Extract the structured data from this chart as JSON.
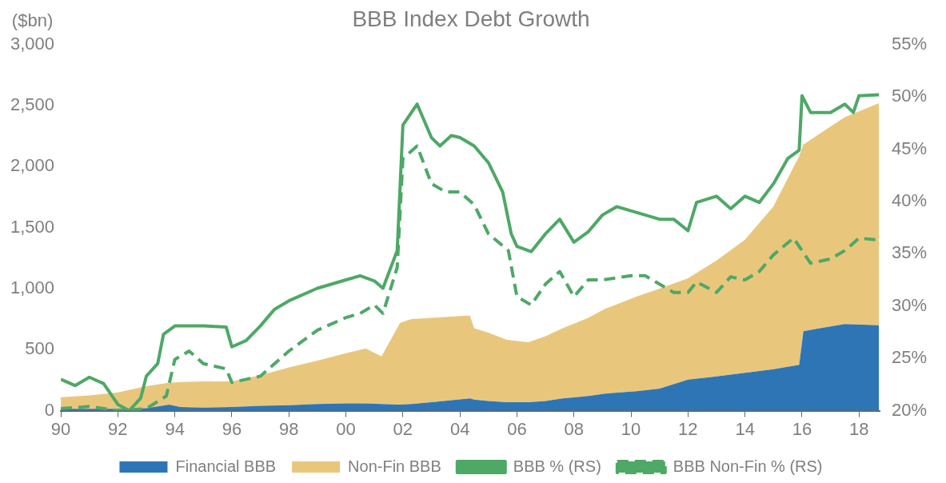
{
  "chart_data": {
    "type": "area",
    "title": "BBB Index Debt Growth",
    "ylabel": "($bn)",
    "stacked": true,
    "legend": "bottom",
    "grid": false,
    "marker": "none",
    "x": [
      1990,
      1991,
      1992,
      1993,
      1993.8,
      1994.2,
      1995,
      1996,
      1997,
      1998,
      1999,
      2000,
      2000.7,
      2001.25,
      2001.9,
      2002.3,
      2003,
      2004.35,
      2004.5,
      2005,
      2005.65,
      2006.4,
      2007,
      2007.6,
      2008.5,
      2009.1,
      2010.2,
      2011,
      2012,
      2013,
      2014,
      2015,
      2015.9,
      2016.05,
      2016.5,
      2017.5,
      2018.7
    ],
    "xlim": [
      1990,
      2018.75
    ],
    "xticks": [
      {
        "value": 1990,
        "label": "90"
      },
      {
        "value": 1992,
        "label": "92"
      },
      {
        "value": 1994,
        "label": "94"
      },
      {
        "value": 1996,
        "label": "96"
      },
      {
        "value": 1998,
        "label": "98"
      },
      {
        "value": 2000,
        "label": "00"
      },
      {
        "value": 2002,
        "label": "02"
      },
      {
        "value": 2004,
        "label": "04"
      },
      {
        "value": 2006,
        "label": "06"
      },
      {
        "value": 2008,
        "label": "08"
      },
      {
        "value": 2010,
        "label": "10"
      },
      {
        "value": 2012,
        "label": "12"
      },
      {
        "value": 2014,
        "label": "14"
      },
      {
        "value": 2016,
        "label": "16"
      },
      {
        "value": 2018,
        "label": "18"
      }
    ],
    "ylim": [
      0,
      3000
    ],
    "yticks": [
      0,
      500,
      {
        "value": 1000,
        "label": "1,000"
      },
      {
        "value": 1500,
        "label": "1,500"
      },
      {
        "value": 2000,
        "label": "2,000"
      },
      {
        "value": 2500,
        "label": "2,500"
      },
      {
        "value": 3000,
        "label": "3,000"
      }
    ],
    "y2lim": [
      20,
      55
    ],
    "y2ticks": [
      {
        "value": 20,
        "label": "20%"
      },
      {
        "value": 25,
        "label": "25%"
      },
      {
        "value": 30,
        "label": "30%"
      },
      {
        "value": 35,
        "label": "35%"
      },
      {
        "value": 40,
        "label": "40%"
      },
      {
        "value": 45,
        "label": "45%"
      },
      {
        "value": 50,
        "label": "50%"
      },
      {
        "value": 55,
        "label": "55%"
      }
    ],
    "series": [
      {
        "name": "Financial BBB",
        "color": "#2e75b6",
        "values": [
          15,
          15,
          15,
          20,
          50,
          30,
          25,
          30,
          40,
          45,
          55,
          60,
          60,
          55,
          50,
          55,
          70,
          100,
          90,
          80,
          70,
          70,
          80,
          100,
          120,
          140,
          160,
          180,
          255,
          280,
          310,
          340,
          375,
          650,
          670,
          710,
          700
        ]
      },
      {
        "name": "Non-Fin BBB",
        "color": "#e8c77d",
        "values": [
          95,
          110,
          135,
          180,
          180,
          205,
          215,
          210,
          250,
          310,
          355,
          410,
          450,
          390,
          670,
          695,
          690,
          680,
          585,
          560,
          510,
          490,
          530,
          575,
          640,
          695,
          775,
          820,
          830,
          950,
          1090,
          1335,
          1710,
          1530,
          1580,
          1695,
          1820
        ]
      },
      {
        "name": "BBB % (RS)",
        "type": "line",
        "axis": "y2",
        "color": "#4ea866",
        "line_style": "solid",
        "x": [
          1990,
          1990.5,
          1991,
          1991.5,
          1992,
          1992.4,
          1992.8,
          1993,
          1993.4,
          1993.6,
          1994,
          1995,
          1995.8,
          1996,
          1996.5,
          1997,
          1997.5,
          1998,
          1999,
          2000,
          2000.5,
          2001,
          2001.3,
          2001.8,
          2002,
          2002.2,
          2002.5,
          2003,
          2003.3,
          2003.7,
          2004,
          2004.5,
          2005,
          2005.5,
          2005.8,
          2006,
          2006.5,
          2007,
          2007.5,
          2008,
          2008.5,
          2009,
          2009.5,
          2010,
          2011,
          2011.5,
          2012,
          2012.3,
          2013,
          2013.5,
          2014,
          2014.5,
          2015,
          2015.5,
          2015.9,
          2016,
          2016.3,
          2017,
          2017.5,
          2017.8,
          2018,
          2018.7
        ],
        "values": [
          23.0,
          22.4,
          23.2,
          22.6,
          20.6,
          20.0,
          21.2,
          23.3,
          24.5,
          27.3,
          28.1,
          28.1,
          28.0,
          26.1,
          26.7,
          28.1,
          29.7,
          30.5,
          31.7,
          32.5,
          32.9,
          32.4,
          31.7,
          35.3,
          47.3,
          48.1,
          49.3,
          46.1,
          45.3,
          46.3,
          46.1,
          45.3,
          43.7,
          40.9,
          36.9,
          35.7,
          35.2,
          36.9,
          38.3,
          36.1,
          37.1,
          38.7,
          39.5,
          39.1,
          38.3,
          38.3,
          37.2,
          39.9,
          40.5,
          39.3,
          40.5,
          39.9,
          41.7,
          44.1,
          44.9,
          50.1,
          48.5,
          48.5,
          49.3,
          48.5,
          50.1,
          50.2
        ]
      },
      {
        "name": "BBB Non-Fin % (RS)",
        "type": "line",
        "axis": "y2",
        "color": "#4ea866",
        "line_style": "dashed",
        "x": [
          1990,
          1991,
          1992,
          1993,
          1993.7,
          1994,
          1994.5,
          1995,
          1995.8,
          1996,
          1997,
          1998,
          1999,
          2000,
          2000.5,
          2001,
          2001.3,
          2001.8,
          2002,
          2002.5,
          2003,
          2003.5,
          2004,
          2004.5,
          2005,
          2005.7,
          2006,
          2006.5,
          2007,
          2007.5,
          2008,
          2008.5,
          2009,
          2010,
          2010.5,
          2011,
          2011.5,
          2012,
          2012.3,
          2013,
          2013.5,
          2014,
          2014.5,
          2015,
          2015.7,
          2016,
          2016.3,
          2017,
          2017.5,
          2018,
          2018.7
        ],
        "values": [
          20.2,
          20.4,
          20.0,
          20.2,
          21.4,
          24.9,
          25.7,
          24.5,
          24.0,
          22.7,
          23.3,
          25.7,
          27.7,
          28.9,
          29.3,
          30.1,
          29.3,
          33.7,
          44.1,
          45.3,
          41.7,
          40.9,
          40.9,
          39.7,
          36.9,
          35.3,
          30.9,
          30.1,
          32.1,
          33.3,
          30.9,
          32.5,
          32.5,
          32.9,
          32.9,
          32.1,
          31.3,
          31.3,
          32.3,
          31.3,
          32.8,
          32.5,
          33.3,
          34.9,
          36.5,
          35.3,
          34.1,
          34.5,
          35.3,
          36.5,
          36.3
        ]
      }
    ]
  }
}
